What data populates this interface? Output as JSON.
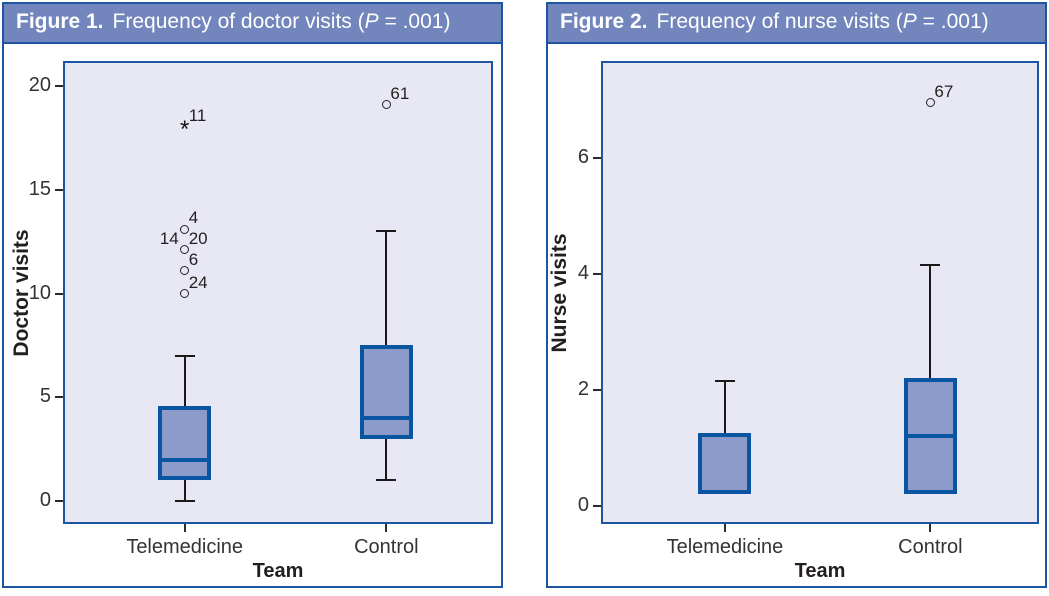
{
  "colors": {
    "header_bg": "#7286bd",
    "frame_blue": "#1e55a3",
    "box_fill": "#8c9bca",
    "box_stroke": "#0a55a2",
    "plot_bg": "#e7e8f3",
    "whisker": "#1a1a1a",
    "text": "#231f20",
    "title_text": "#ffffff"
  },
  "figures": [
    {
      "title_prefix": "Figure 1.",
      "title_before_p": "Frequency of doctor visits (",
      "title_p": "P",
      "title_after_p": " = .001)",
      "ylabel": "Doctor visits",
      "xlabel": "Team"
    },
    {
      "title_prefix": "Figure 2.",
      "title_before_p": "Frequency of nurse visits (",
      "title_p": "P",
      "title_after_p": " = .001)",
      "ylabel": "Nurse visits",
      "xlabel": "Team"
    }
  ],
  "chart_data": [
    {
      "type": "boxplot",
      "title": "Figure 1. Frequency of doctor visits (P = .001)",
      "xlabel": "Team",
      "ylabel": "Doctor visits",
      "categories": [
        "Telemedicine",
        "Control"
      ],
      "yticks": [
        0,
        5,
        10,
        15,
        20
      ],
      "ylim_display": [
        -1.1,
        21.2
      ],
      "grid": false,
      "series": [
        {
          "category": "Telemedicine",
          "whisker_low": 0,
          "q1": 1,
          "median": 2,
          "q3": 4.6,
          "whisker_high": 7,
          "outliers": [
            {
              "value": 18,
              "marker": "star",
              "label": "11",
              "side": "right"
            },
            {
              "value": 13.1,
              "marker": "circle",
              "label": "4",
              "side": "right"
            },
            {
              "value": 12.1,
              "marker": "circle",
              "label": "20",
              "side": "right",
              "label2": "14",
              "label2_side": "left"
            },
            {
              "value": 11.1,
              "marker": "circle",
              "label": "6",
              "side": "right"
            },
            {
              "value": 10,
              "marker": "circle",
              "label": "24",
              "side": "right"
            }
          ]
        },
        {
          "category": "Control",
          "whisker_low": 1,
          "q1": 3,
          "median": 4,
          "q3": 7.5,
          "whisker_high": 13,
          "outliers": [
            {
              "value": 19.1,
              "marker": "circle",
              "label": "61",
              "side": "right"
            }
          ]
        }
      ]
    },
    {
      "type": "boxplot",
      "title": "Figure 2. Frequency of nurse visits (P = .001)",
      "xlabel": "Team",
      "ylabel": "Nurse visits",
      "categories": [
        "Telemedicine",
        "Control"
      ],
      "yticks": [
        0,
        2,
        4,
        6
      ],
      "ylim_display": [
        -0.31,
        7.67
      ],
      "grid": false,
      "series": [
        {
          "category": "Telemedicine",
          "whisker_low": null,
          "q1": 0.2,
          "median": null,
          "q3": 1.25,
          "whisker_high": 2.15,
          "outliers": []
        },
        {
          "category": "Control",
          "whisker_low": null,
          "q1": 0.2,
          "median": 1.2,
          "q3": 2.2,
          "whisker_high": 4.15,
          "outliers": [
            {
              "value": 6.95,
              "marker": "circle",
              "label": "67",
              "side": "right"
            }
          ]
        }
      ]
    }
  ]
}
